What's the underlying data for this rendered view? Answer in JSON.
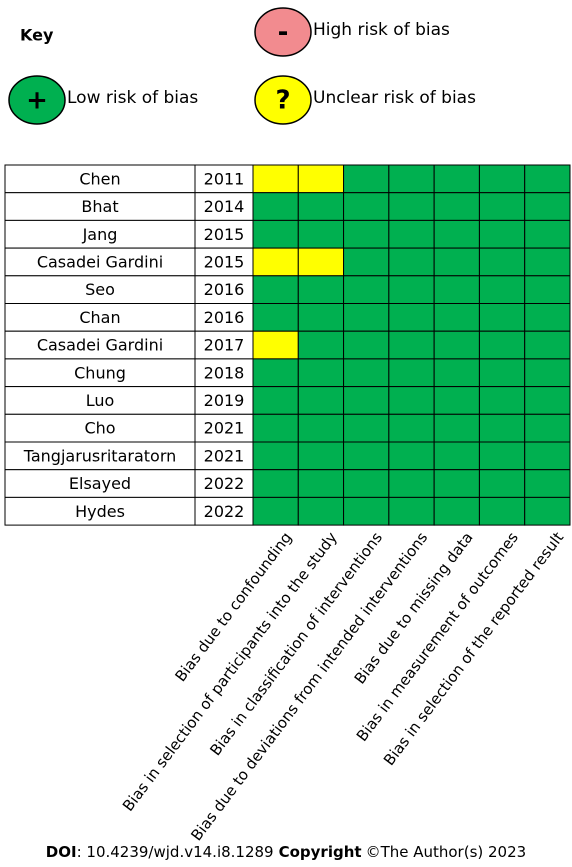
{
  "key": {
    "title": "Key",
    "items": [
      {
        "symbol": "-",
        "label": "High risk of bias",
        "color": "#f28b8f"
      },
      {
        "symbol": "+",
        "label": "Low risk of bias",
        "color": "#00b050"
      },
      {
        "symbol": "?",
        "label": "Unclear risk of bias",
        "color": "#ffff00"
      }
    ]
  },
  "table": {
    "columns": [
      "Bias due to confounding",
      "Bias in selection of participants into the study",
      "Bias in classification of interventions",
      "Bias due to deviations from intended interventions",
      "Bias due to missing data",
      "Bias in measurement of outcomes",
      "Bias in selection of the reported result"
    ],
    "rows": [
      {
        "study": "Chen",
        "year": "2011",
        "cells": [
          "#ffff00",
          "#ffff00",
          "#00b050",
          "#00b050",
          "#00b050",
          "#00b050",
          "#00b050"
        ]
      },
      {
        "study": "Bhat",
        "year": "2014",
        "cells": [
          "#00b050",
          "#00b050",
          "#00b050",
          "#00b050",
          "#00b050",
          "#00b050",
          "#00b050"
        ]
      },
      {
        "study": "Jang",
        "year": "2015",
        "cells": [
          "#00b050",
          "#00b050",
          "#00b050",
          "#00b050",
          "#00b050",
          "#00b050",
          "#00b050"
        ]
      },
      {
        "study": "Casadei Gardini",
        "year": "2015",
        "cells": [
          "#ffff00",
          "#ffff00",
          "#00b050",
          "#00b050",
          "#00b050",
          "#00b050",
          "#00b050"
        ]
      },
      {
        "study": "Seo",
        "year": "2016",
        "cells": [
          "#00b050",
          "#00b050",
          "#00b050",
          "#00b050",
          "#00b050",
          "#00b050",
          "#00b050"
        ]
      },
      {
        "study": "Chan",
        "year": "2016",
        "cells": [
          "#00b050",
          "#00b050",
          "#00b050",
          "#00b050",
          "#00b050",
          "#00b050",
          "#00b050"
        ]
      },
      {
        "study": "Casadei Gardini",
        "year": "2017",
        "cells": [
          "#ffff00",
          "#00b050",
          "#00b050",
          "#00b050",
          "#00b050",
          "#00b050",
          "#00b050"
        ]
      },
      {
        "study": "Chung",
        "year": "2018",
        "cells": [
          "#00b050",
          "#00b050",
          "#00b050",
          "#00b050",
          "#00b050",
          "#00b050",
          "#00b050"
        ]
      },
      {
        "study": "Luo",
        "year": "2019",
        "cells": [
          "#00b050",
          "#00b050",
          "#00b050",
          "#00b050",
          "#00b050",
          "#00b050",
          "#00b050"
        ]
      },
      {
        "study": "Cho",
        "year": "2021",
        "cells": [
          "#00b050",
          "#00b050",
          "#00b050",
          "#00b050",
          "#00b050",
          "#00b050",
          "#00b050"
        ]
      },
      {
        "study": "Tangjarusritaratorn",
        "year": "2021",
        "cells": [
          "#00b050",
          "#00b050",
          "#00b050",
          "#00b050",
          "#00b050",
          "#00b050",
          "#00b050"
        ]
      },
      {
        "study": "Elsayed",
        "year": "2022",
        "cells": [
          "#00b050",
          "#00b050",
          "#00b050",
          "#00b050",
          "#00b050",
          "#00b050",
          "#00b050"
        ]
      },
      {
        "study": "Hydes",
        "year": "2022",
        "cells": [
          "#00b050",
          "#00b050",
          "#00b050",
          "#00b050",
          "#00b050",
          "#00b050",
          "#00b050"
        ]
      }
    ]
  },
  "footer": {
    "doi_label": "DOI",
    "doi": ": 10.4239/wjd.v14.i8.1289",
    "copyright_label": "Copyright",
    "copyright": "©The Author(s) 2023"
  }
}
